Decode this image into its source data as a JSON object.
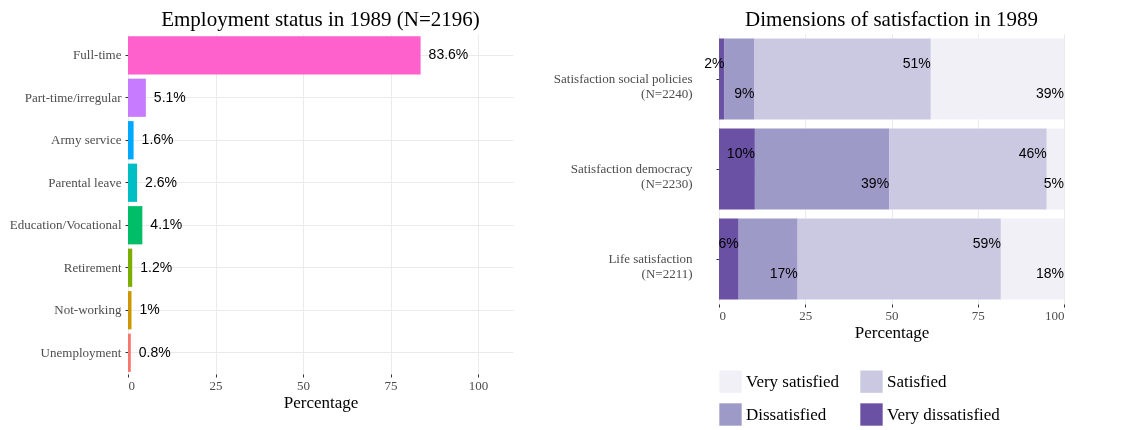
{
  "chart_data": [
    {
      "type": "bar",
      "orientation": "horizontal",
      "title": "Employment status in 1989 (N=2196)",
      "xlabel": "Percentage",
      "categories": [
        "Full-time",
        "Part-time/irregular",
        "Army service",
        "Parental leave",
        "Education/Vocational",
        "Retirement",
        "Not-working",
        "Unemployment"
      ],
      "values": [
        83.6,
        5.1,
        1.6,
        2.6,
        4.1,
        1.2,
        1,
        0.8
      ],
      "value_labels": [
        "83.6%",
        "5.1%",
        "1.6%",
        "2.6%",
        "4.1%",
        "1.2%",
        "1%",
        "0.8%"
      ],
      "colors": [
        "#ff61cc",
        "#c77cff",
        "#00a9ff",
        "#00bfc4",
        "#00be67",
        "#7cae00",
        "#cd9600",
        "#f8766d"
      ],
      "xlim": [
        0,
        110
      ],
      "xticks": [
        0,
        25,
        50,
        75,
        100
      ],
      "grid": true
    },
    {
      "type": "bar",
      "orientation": "horizontal",
      "stacked": true,
      "title": "Dimensions of satisfaction in 1989",
      "xlabel": "Percentage",
      "categories": [
        "Satisfaction social policies\n(N=2240)",
        "Satisfaction democracy\n(N=2230)",
        "Life satisfaction\n(N=2211)"
      ],
      "series": [
        {
          "name": "Very dissatisfied",
          "color": "#6a51a3",
          "values": [
            1.6,
            10.4,
            5.7
          ],
          "value_labels": [
            "2%",
            "10%",
            "6%"
          ]
        },
        {
          "name": "Dissatisfied",
          "color": "#9e9ac8",
          "values": [
            8.7,
            38.9,
            17.1
          ],
          "value_labels": [
            "9%",
            "39%",
            "17%"
          ]
        },
        {
          "name": "Satisfied",
          "color": "#cbc9e2",
          "values": [
            51.1,
            45.7,
            58.9
          ],
          "value_labels": [
            "51%",
            "46%",
            "59%"
          ]
        },
        {
          "name": "Very satisfied",
          "color": "#f2f0f7",
          "values": [
            38.6,
            5.0,
            18.3
          ],
          "value_labels": [
            "39%",
            "5%",
            "18%"
          ]
        }
      ],
      "xlim": [
        0,
        100
      ],
      "xticks": [
        0,
        25,
        50,
        75,
        100
      ],
      "grid": true,
      "legend": "bottom"
    }
  ]
}
